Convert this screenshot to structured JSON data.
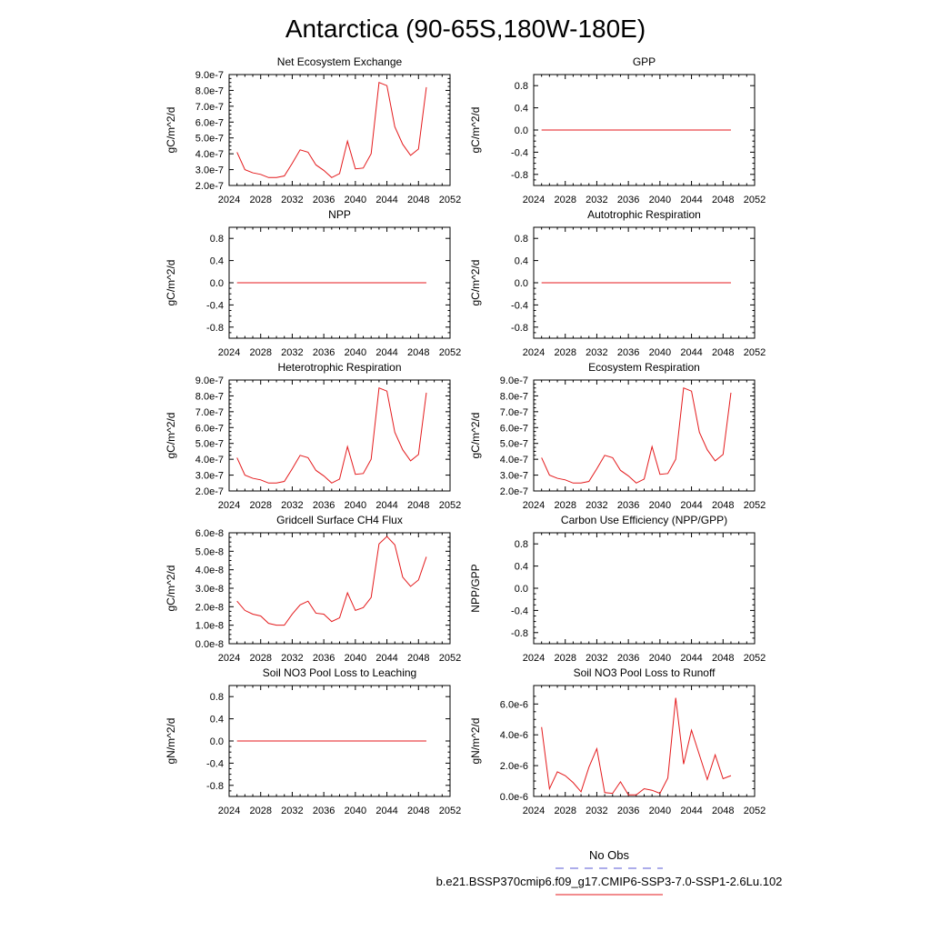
{
  "figure": {
    "title": "Antarctica (90-65S,180W-180E)",
    "legend": {
      "obs_label": "No Obs",
      "obs_color": "#5a5ad6",
      "run_label": "b.e21.BSSP370cmip6.f09_g17.CMIP6-SSP3-7.0-SSP1-2.6Lu.102",
      "run_color": "#e41a1c"
    }
  },
  "chart_data": [
    {
      "type": "line",
      "title": "Net Ecosystem Exchange",
      "ylabel": "gC/m^2/d",
      "xlim": [
        2024,
        2052
      ],
      "xticks": [
        "2024",
        "2028",
        "2032",
        "2036",
        "2040",
        "2044",
        "2048",
        "2052"
      ],
      "ylim": [
        2e-07,
        9e-07
      ],
      "yticks": [
        "2.0e-7",
        "3.0e-7",
        "4.0e-7",
        "5.0e-7",
        "6.0e-7",
        "7.0e-7",
        "8.0e-7",
        "9.0e-7"
      ],
      "x": [
        2025,
        2026,
        2027,
        2028,
        2029,
        2030,
        2031,
        2032,
        2033,
        2034,
        2035,
        2036,
        2037,
        2038,
        2039,
        2040,
        2041,
        2042,
        2043,
        2044,
        2045,
        2046,
        2047,
        2048,
        2049
      ],
      "series": [
        {
          "color": "#e41a1c",
          "values": [
            4.1e-07,
            3e-07,
            2.8e-07,
            2.7e-07,
            2.5e-07,
            2.5e-07,
            2.6e-07,
            3.4e-07,
            4.25e-07,
            4.1e-07,
            3.3e-07,
            2.95e-07,
            2.5e-07,
            2.75e-07,
            4.8e-07,
            3.05e-07,
            3.1e-07,
            4e-07,
            8.5e-07,
            8.3e-07,
            5.7e-07,
            4.6e-07,
            3.9e-07,
            4.3e-07,
            8.2e-07
          ]
        }
      ]
    },
    {
      "type": "line",
      "title": "GPP",
      "ylabel": "gC/m^2/d",
      "xlim": [
        2024,
        2052
      ],
      "xticks": [
        "2024",
        "2028",
        "2032",
        "2036",
        "2040",
        "2044",
        "2048",
        "2052"
      ],
      "ylim": [
        -1.0,
        1.0
      ],
      "yticks": [
        "-0.8",
        "-0.4",
        "0.0",
        "0.4",
        "0.8"
      ],
      "x": [
        2025,
        2049
      ],
      "series": [
        {
          "color": "#e41a1c",
          "values": [
            0,
            0
          ]
        }
      ]
    },
    {
      "type": "line",
      "title": "NPP",
      "ylabel": "gC/m^2/d",
      "xlim": [
        2024,
        2052
      ],
      "xticks": [
        "2024",
        "2028",
        "2032",
        "2036",
        "2040",
        "2044",
        "2048",
        "2052"
      ],
      "ylim": [
        -1.0,
        1.0
      ],
      "yticks": [
        "-0.8",
        "-0.4",
        "0.0",
        "0.4",
        "0.8"
      ],
      "x": [
        2025,
        2049
      ],
      "series": [
        {
          "color": "#e41a1c",
          "values": [
            0,
            0
          ]
        }
      ]
    },
    {
      "type": "line",
      "title": "Autotrophic Respiration",
      "ylabel": "gC/m^2/d",
      "xlim": [
        2024,
        2052
      ],
      "xticks": [
        "2024",
        "2028",
        "2032",
        "2036",
        "2040",
        "2044",
        "2048",
        "2052"
      ],
      "ylim": [
        -1.0,
        1.0
      ],
      "yticks": [
        "-0.8",
        "-0.4",
        "0.0",
        "0.4",
        "0.8"
      ],
      "x": [
        2025,
        2049
      ],
      "series": [
        {
          "color": "#e41a1c",
          "values": [
            0,
            0
          ]
        }
      ]
    },
    {
      "type": "line",
      "title": "Heterotrophic Respiration",
      "ylabel": "gC/m^2/d",
      "xlim": [
        2024,
        2052
      ],
      "xticks": [
        "2024",
        "2028",
        "2032",
        "2036",
        "2040",
        "2044",
        "2048",
        "2052"
      ],
      "ylim": [
        2e-07,
        9e-07
      ],
      "yticks": [
        "2.0e-7",
        "3.0e-7",
        "4.0e-7",
        "5.0e-7",
        "6.0e-7",
        "7.0e-7",
        "8.0e-7",
        "9.0e-7"
      ],
      "x": [
        2025,
        2026,
        2027,
        2028,
        2029,
        2030,
        2031,
        2032,
        2033,
        2034,
        2035,
        2036,
        2037,
        2038,
        2039,
        2040,
        2041,
        2042,
        2043,
        2044,
        2045,
        2046,
        2047,
        2048,
        2049
      ],
      "series": [
        {
          "color": "#e41a1c",
          "values": [
            4.1e-07,
            3e-07,
            2.8e-07,
            2.7e-07,
            2.5e-07,
            2.5e-07,
            2.6e-07,
            3.4e-07,
            4.25e-07,
            4.1e-07,
            3.3e-07,
            2.95e-07,
            2.5e-07,
            2.75e-07,
            4.8e-07,
            3.05e-07,
            3.1e-07,
            4e-07,
            8.5e-07,
            8.3e-07,
            5.7e-07,
            4.6e-07,
            3.9e-07,
            4.3e-07,
            8.2e-07
          ]
        }
      ]
    },
    {
      "type": "line",
      "title": "Ecosystem Respiration",
      "ylabel": "gC/m^2/d",
      "xlim": [
        2024,
        2052
      ],
      "xticks": [
        "2024",
        "2028",
        "2032",
        "2036",
        "2040",
        "2044",
        "2048",
        "2052"
      ],
      "ylim": [
        2e-07,
        9e-07
      ],
      "yticks": [
        "2.0e-7",
        "3.0e-7",
        "4.0e-7",
        "5.0e-7",
        "6.0e-7",
        "7.0e-7",
        "8.0e-7",
        "9.0e-7"
      ],
      "x": [
        2025,
        2026,
        2027,
        2028,
        2029,
        2030,
        2031,
        2032,
        2033,
        2034,
        2035,
        2036,
        2037,
        2038,
        2039,
        2040,
        2041,
        2042,
        2043,
        2044,
        2045,
        2046,
        2047,
        2048,
        2049
      ],
      "series": [
        {
          "color": "#e41a1c",
          "values": [
            4.1e-07,
            3e-07,
            2.8e-07,
            2.7e-07,
            2.5e-07,
            2.5e-07,
            2.6e-07,
            3.4e-07,
            4.25e-07,
            4.1e-07,
            3.3e-07,
            2.95e-07,
            2.5e-07,
            2.75e-07,
            4.8e-07,
            3.05e-07,
            3.1e-07,
            4e-07,
            8.5e-07,
            8.3e-07,
            5.7e-07,
            4.6e-07,
            3.9e-07,
            4.3e-07,
            8.2e-07
          ]
        }
      ]
    },
    {
      "type": "line",
      "title": "Gridcell Surface CH4 Flux",
      "ylabel": "gC/m^2/d",
      "xlim": [
        2024,
        2052
      ],
      "xticks": [
        "2024",
        "2028",
        "2032",
        "2036",
        "2040",
        "2044",
        "2048",
        "2052"
      ],
      "ylim": [
        0.0,
        6e-08
      ],
      "yticks": [
        "0.0e-8",
        "1.0e-8",
        "2.0e-8",
        "3.0e-8",
        "4.0e-8",
        "5.0e-8",
        "6.0e-8"
      ],
      "x": [
        2025,
        2026,
        2027,
        2028,
        2029,
        2030,
        2031,
        2032,
        2033,
        2034,
        2035,
        2036,
        2037,
        2038,
        2039,
        2040,
        2041,
        2042,
        2043,
        2044,
        2045,
        2046,
        2047,
        2048,
        2049
      ],
      "series": [
        {
          "color": "#e41a1c",
          "values": [
            2.3e-08,
            1.8e-08,
            1.6e-08,
            1.5e-08,
            1.1e-08,
            1e-08,
            1e-08,
            1.6e-08,
            2.1e-08,
            2.3e-08,
            1.65e-08,
            1.6e-08,
            1.2e-08,
            1.4e-08,
            2.75e-08,
            1.8e-08,
            1.95e-08,
            2.5e-08,
            5.4e-08,
            5.8e-08,
            5.35e-08,
            3.6e-08,
            3.1e-08,
            3.45e-08,
            4.7e-08
          ]
        }
      ]
    },
    {
      "type": "line",
      "title": "Carbon Use Efficiency (NPP/GPP)",
      "ylabel": "NPP/GPP",
      "xlim": [
        2024,
        2052
      ],
      "xticks": [
        "2024",
        "2028",
        "2032",
        "2036",
        "2040",
        "2044",
        "2048",
        "2052"
      ],
      "ylim": [
        -1.0,
        1.0
      ],
      "yticks": [
        "-0.8",
        "-0.4",
        "0.0",
        "0.4",
        "0.8"
      ],
      "x": [],
      "series": [
        {
          "color": "#e41a1c",
          "values": []
        }
      ]
    },
    {
      "type": "line",
      "title": "Soil NO3 Pool Loss to Leaching",
      "ylabel": "gN/m^2/d",
      "xlim": [
        2024,
        2052
      ],
      "xticks": [
        "2024",
        "2028",
        "2032",
        "2036",
        "2040",
        "2044",
        "2048",
        "2052"
      ],
      "ylim": [
        -1.0,
        1.0
      ],
      "yticks": [
        "-0.8",
        "-0.4",
        "0.0",
        "0.4",
        "0.8"
      ],
      "x": [
        2025,
        2049
      ],
      "series": [
        {
          "color": "#e41a1c",
          "values": [
            0,
            0
          ]
        }
      ]
    },
    {
      "type": "line",
      "title": "Soil NO3 Pool Loss to Runoff",
      "ylabel": "gN/m^2/d",
      "xlim": [
        2024,
        2052
      ],
      "xticks": [
        "2024",
        "2028",
        "2032",
        "2036",
        "2040",
        "2044",
        "2048",
        "2052"
      ],
      "ylim": [
        0.0,
        7.2e-06
      ],
      "yticks": [
        "0.0e-6",
        "2.0e-6",
        "4.0e-6",
        "6.0e-6"
      ],
      "x": [
        2025,
        2026,
        2027,
        2028,
        2029,
        2030,
        2031,
        2032,
        2033,
        2034,
        2035,
        2036,
        2037,
        2038,
        2039,
        2040,
        2041,
        2042,
        2043,
        2044,
        2045,
        2046,
        2047,
        2048,
        2049
      ],
      "series": [
        {
          "color": "#e41a1c",
          "values": [
            4.5e-06,
            5e-07,
            1.6e-06,
            1.35e-06,
            9e-07,
            3e-07,
            1.9e-06,
            3.1e-06,
            2.5e-07,
            2e-07,
            9.5e-07,
            1e-07,
            1e-07,
            5e-07,
            4e-07,
            2e-07,
            1.2e-06,
            6.4e-06,
            2.1e-06,
            4.3e-06,
            2.7e-06,
            1.1e-06,
            2.7e-06,
            1.15e-06,
            1.35e-06
          ]
        }
      ]
    }
  ]
}
